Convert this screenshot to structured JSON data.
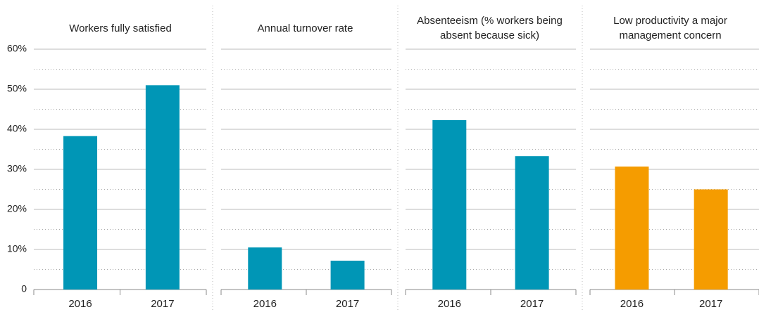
{
  "chart_data": [
    {
      "type": "bar",
      "title": "Workers fully satisfied",
      "categories": [
        "2016",
        "2017"
      ],
      "values": [
        38.3,
        51
      ],
      "color": "#0096b6",
      "ylim": [
        0,
        60
      ],
      "yticks": [
        0,
        {
          "value": 10,
          "label": "10%"
        },
        {
          "value": 20,
          "label": "20%"
        },
        {
          "value": 30,
          "label": "30%"
        },
        {
          "value": 40,
          "label": "40%"
        },
        {
          "value": 50,
          "label": "50%"
        },
        {
          "value": 60,
          "label": "60%"
        }
      ],
      "minor_yticks": [
        5,
        15,
        25,
        35,
        45,
        55
      ],
      "grid": true
    },
    {
      "type": "bar",
      "title": "Annual turnover rate",
      "categories": [
        "2016",
        "2017"
      ],
      "values": [
        10.5,
        7.2
      ],
      "color": "#0096b6"
    },
    {
      "type": "bar",
      "title": "Absenteeism (% workers being absent because sick)",
      "categories": [
        "2016",
        "2017"
      ],
      "values": [
        42.3,
        33.3
      ],
      "color": "#0096b6"
    },
    {
      "type": "bar",
      "title": "Low productivity a major management concern",
      "categories": [
        "2016",
        "2017"
      ],
      "values": [
        30.7,
        25
      ],
      "color": "#f59c00"
    }
  ]
}
